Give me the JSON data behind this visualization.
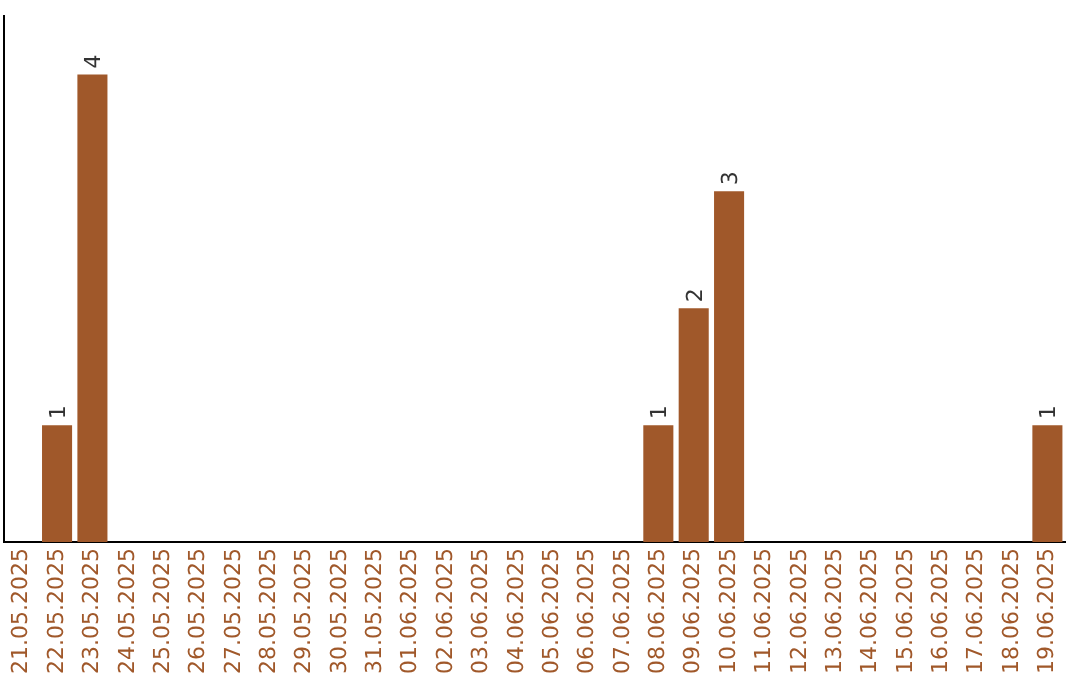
{
  "chart_data": {
    "type": "bar",
    "categories": [
      "21.05.2025",
      "22.05.2025",
      "23.05.2025",
      "24.05.2025",
      "25.05.2025",
      "26.05.2025",
      "27.05.2025",
      "28.05.2025",
      "29.05.2025",
      "30.05.2025",
      "31.05.2025",
      "01.06.2025",
      "02.06.2025",
      "03.06.2025",
      "04.06.2025",
      "05.06.2025",
      "06.06.2025",
      "07.06.2025",
      "08.06.2025",
      "09.06.2025",
      "10.06.2025",
      "11.06.2025",
      "12.06.2025",
      "13.06.2025",
      "14.06.2025",
      "15.06.2025",
      "16.06.2025",
      "17.06.2025",
      "18.06.2025",
      "19.06.2025"
    ],
    "values": [
      0,
      1,
      4,
      0,
      0,
      0,
      0,
      0,
      0,
      0,
      0,
      0,
      0,
      0,
      0,
      0,
      0,
      0,
      1,
      2,
      3,
      0,
      0,
      0,
      0,
      0,
      0,
      0,
      0,
      1
    ],
    "value_labels": [
      null,
      "1",
      "4",
      null,
      null,
      null,
      null,
      null,
      null,
      null,
      null,
      null,
      null,
      null,
      null,
      null,
      null,
      null,
      "1",
      "2",
      "3",
      null,
      null,
      null,
      null,
      null,
      null,
      null,
      null,
      "1"
    ],
    "color": "#a0582a",
    "grid": false,
    "legend": false,
    "tick_labels": "x"
  }
}
